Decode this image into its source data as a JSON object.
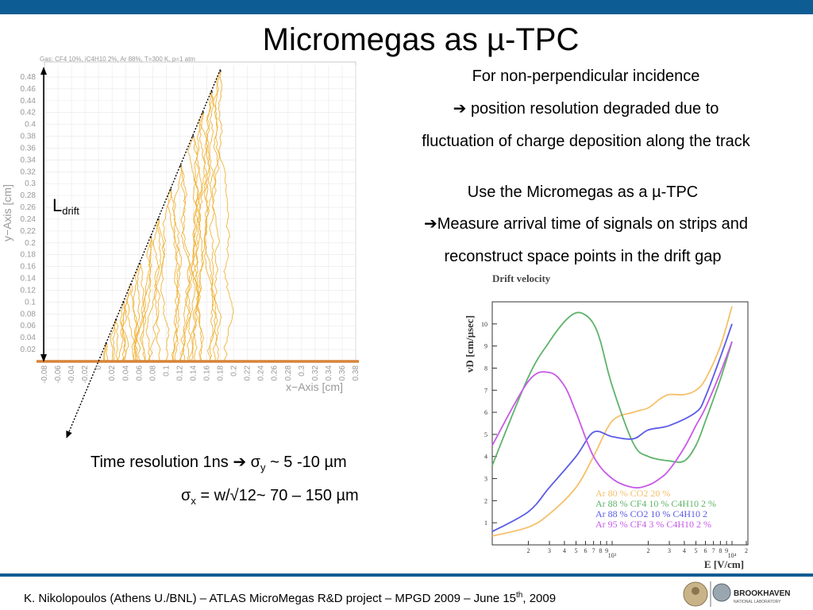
{
  "slide": {
    "title": "Micromegas as µ-TPC",
    "text_block1": {
      "line1": "For non-perpendicular incidence",
      "line2": "position resolution degraded due to",
      "line3": "fluctuation of charge deposition along the track"
    },
    "text_block2": {
      "line1": "Use the Micromegas as a µ-TPC",
      "line2": "Measure arrival time of signals on strips and",
      "line3": "reconstruct space points in the drift gap"
    },
    "arrow_glyph": "➔",
    "time_resolution": {
      "prefix": "Time resolution 1ns",
      "sigma_y": "σ",
      "sub_y": "y",
      "value_y": " ~ 5 -10 µm",
      "sigma_x": "σ",
      "sub_x": "x",
      "value_x": " = w/√12~ 70 – 150 µm"
    },
    "ldrift": {
      "main": "L",
      "sub": "drift"
    },
    "footer": {
      "text": "K. Nikolopoulos (Athens U./BNL) – ATLAS MicroMegas R&D project – MPGD 2009 – June 15",
      "sup": "th",
      "tail": ", 2009"
    },
    "logo_text": {
      "main": "BROOKHAVEN",
      "sub": "NATIONAL LABORATORY"
    },
    "colors": {
      "bar": "#0d5c93",
      "tracks": "#f0b43c"
    }
  },
  "chart_data": [
    {
      "type": "line",
      "title": "Gas: CF4 10%, iC4H10 2%, Ar 88%, T=300 K, p=1 atm",
      "xlabel": "x−Axis [cm]",
      "ylabel": "y−Axis [cm]",
      "xlim": [
        -0.08,
        0.38
      ],
      "ylim": [
        0,
        0.5
      ],
      "x_ticks": [
        "-0.08",
        "-0.06",
        "-0.04",
        "-0.02",
        "0",
        "0.02",
        "0.04",
        "0.06",
        "0.08",
        "0.1",
        "0.12",
        "0.14",
        "0.16",
        "0.18",
        "0.2",
        "0.22",
        "0.24",
        "0.26",
        "0.28",
        "0.3",
        "0.32",
        "0.34",
        "0.36",
        "0.38"
      ],
      "y_ticks": [
        "0.02",
        "0.04",
        "0.06",
        "0.08",
        "0.1",
        "0.12",
        "0.14",
        "0.16",
        "0.18",
        "0.2",
        "0.22",
        "0.24",
        "0.26",
        "0.28",
        "0.3",
        "0.32",
        "0.34",
        "0.36",
        "0.38",
        "0.4",
        "0.42",
        "0.44",
        "0.46",
        "0.48"
      ],
      "grid": true,
      "track_line": {
        "x": [
          0,
          0.18
        ],
        "y": [
          0,
          0.49
        ]
      },
      "drift_start_y": [
        0.03,
        0.07,
        0.1,
        0.13,
        0.165,
        0.21,
        0.24,
        0.29,
        0.33,
        0.38,
        0.42,
        0.455,
        0.49
      ]
    },
    {
      "type": "line",
      "title": "Drift velocity",
      "xlabel": "E [V/cm]",
      "ylabel": "vD [cm/µsec]",
      "x_scale": "log",
      "xlim": [
        100,
        10000
      ],
      "ylim": [
        0,
        11
      ],
      "y_ticks": [
        "1",
        "2",
        "3",
        "4",
        "5",
        "6",
        "7",
        "8",
        "9",
        "10"
      ],
      "x_ticks": [
        "2",
        "3",
        "4",
        "5",
        "6",
        "7",
        "8",
        "9",
        "10³",
        "2",
        "3",
        "4",
        "5",
        "6",
        "7",
        "8",
        "9",
        "10⁴",
        "2"
      ],
      "legend_position": "bottom-right",
      "legend": [
        {
          "text": "Ar 80 % CO2 20 %",
          "color": "#f5c06a"
        },
        {
          "text": "Ar 88 % CF4 10 % C4H10 2 %",
          "color": "#5fb36a"
        },
        {
          "text": "Ar 88 % CO2 10 % C4H10 2",
          "color": "#5a5ae8"
        },
        {
          "text": "Ar 95 % CF4 3 % C4H10 2 %",
          "color": "#c85ae8"
        }
      ],
      "series": [
        {
          "name": "Ar 80 % CO2 20 %",
          "color": "#f5c06a",
          "x": [
            100,
            200,
            300,
            500,
            700,
            1000,
            1500,
            2000,
            2500,
            3000,
            4000,
            5000,
            6000,
            8000,
            10000
          ],
          "y": [
            0.4,
            0.8,
            1.4,
            2.6,
            4.0,
            5.6,
            6.0,
            6.2,
            6.6,
            6.8,
            6.8,
            7.0,
            7.5,
            9.0,
            10.8
          ]
        },
        {
          "name": "Ar 88 % CF4 10 % C4H10 2 %",
          "color": "#5fb36a",
          "x": [
            100,
            200,
            300,
            400,
            500,
            600,
            700,
            800,
            1000,
            1500,
            2000,
            3000,
            4000,
            5000,
            6000,
            8000,
            10000
          ],
          "y": [
            3.6,
            7.6,
            9.2,
            10.1,
            10.5,
            10.4,
            10.0,
            9.2,
            7.2,
            4.6,
            4.0,
            3.8,
            3.8,
            4.5,
            5.6,
            7.5,
            9.2
          ]
        },
        {
          "name": "Ar 88 % CO2 10 % C4H10 2",
          "color": "#5a5ae8",
          "x": [
            100,
            200,
            300,
            500,
            700,
            1000,
            1500,
            2000,
            3000,
            5000,
            6000,
            8000,
            10000
          ],
          "y": [
            0.6,
            1.5,
            2.6,
            4.0,
            5.1,
            4.9,
            4.8,
            5.2,
            5.4,
            6.0,
            6.7,
            8.5,
            10.0
          ]
        },
        {
          "name": "Ar 95 % CF4 3 % C4H10 2 %",
          "color": "#c85ae8",
          "x": [
            100,
            200,
            300,
            400,
            500,
            700,
            1000,
            1500,
            2000,
            2500,
            3000,
            4000,
            5000,
            6000,
            8000,
            10000
          ],
          "y": [
            4.5,
            7.4,
            7.8,
            7.2,
            6.0,
            4.0,
            3.0,
            2.6,
            2.7,
            3.0,
            3.4,
            4.4,
            5.4,
            6.2,
            7.8,
            9.2
          ]
        }
      ]
    }
  ]
}
